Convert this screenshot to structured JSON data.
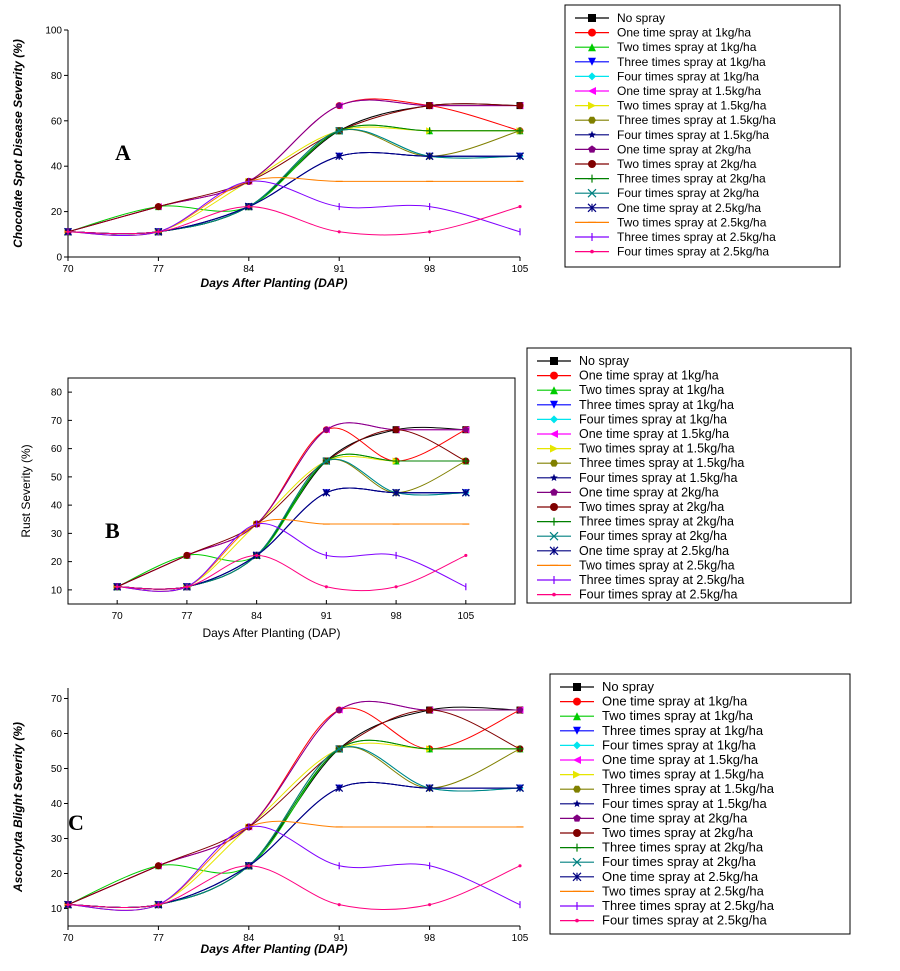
{
  "legend_series": [
    {
      "name": "No spray",
      "color": "#000000",
      "marker": "square"
    },
    {
      "name": "One time spray at 1kg/ha",
      "color": "#ff0000",
      "marker": "circle"
    },
    {
      "name": "Two times spray at 1kg/ha",
      "color": "#00cc00",
      "marker": "triangle-up"
    },
    {
      "name": "Three times spray at 1kg/ha",
      "color": "#0000ff",
      "marker": "triangle-down"
    },
    {
      "name": "Four times spray at 1kg/ha",
      "color": "#00e5ee",
      "marker": "diamond"
    },
    {
      "name": "One time spray at 1.5kg/ha",
      "color": "#ff00ff",
      "marker": "triangle-left"
    },
    {
      "name": "Two times spray at 1.5kg/ha",
      "color": "#e6e600",
      "marker": "triangle-right"
    },
    {
      "name": "Three times spray at 1.5kg/ha",
      "color": "#808000",
      "marker": "hexagon"
    },
    {
      "name": "Four times spray at 1.5kg/ha",
      "color": "#000080",
      "marker": "star"
    },
    {
      "name": "One time spray at 2kg/ha",
      "color": "#800080",
      "marker": "pentagon"
    },
    {
      "name": "Two times spray at 2kg/ha",
      "color": "#800000",
      "marker": "circle"
    },
    {
      "name": "Three times spray at 2kg/ha",
      "color": "#008000",
      "marker": "plus"
    },
    {
      "name": "Four times spray at 2kg/ha",
      "color": "#008080",
      "marker": "x"
    },
    {
      "name": "One time spray at 2.5kg/ha",
      "color": "#000080",
      "marker": "asterisk"
    },
    {
      "name": "Two times spray at 2.5kg/ha",
      "color": "#ff8000",
      "marker": "dash"
    },
    {
      "name": "Three times spray at 2.5kg/ha",
      "color": "#8000ff",
      "marker": "bar"
    },
    {
      "name": "Four times spray at 2.5kg/ha",
      "color": "#ff0080",
      "marker": "dot"
    }
  ],
  "chart_data": [
    {
      "type": "line",
      "panel_label": "A",
      "xlabel": "Days After Planting (DAP)",
      "ylabel": "Chocolate Spot Disease Severity (%)",
      "x": [
        70,
        77,
        84,
        91,
        98,
        105
      ],
      "x_ticks": [
        "70",
        "77",
        "84",
        "91",
        "98",
        "105"
      ],
      "y_ticks": [
        "0",
        "20",
        "40",
        "60",
        "80",
        "100"
      ],
      "ylim": [
        0,
        100
      ],
      "legend": "right",
      "grid": false,
      "series": [
        {
          "name": "No spray",
          "values": [
            11.1,
            11.1,
            22.2,
            55.6,
            66.7,
            66.7
          ]
        },
        {
          "name": "One time spray at 1kg/ha",
          "values": [
            11.1,
            22.2,
            33.3,
            66.7,
            66.7,
            55.6
          ]
        },
        {
          "name": "Two times spray at 1kg/ha",
          "values": [
            11.1,
            22.2,
            22.2,
            55.6,
            55.6,
            55.6
          ]
        },
        {
          "name": "Three times spray at 1kg/ha",
          "values": [
            11.1,
            11.1,
            22.2,
            44.4,
            44.4,
            44.4
          ]
        },
        {
          "name": "Four times spray at 1kg/ha",
          "values": [
            11.1,
            11.1,
            22.2,
            55.6,
            44.4,
            44.4
          ]
        },
        {
          "name": "One time spray at 1.5kg/ha",
          "values": [
            11.1,
            22.2,
            33.3,
            66.7,
            66.7,
            66.7
          ]
        },
        {
          "name": "Two times spray at 1.5kg/ha",
          "values": [
            11.1,
            11.1,
            33.3,
            55.6,
            55.6,
            55.6
          ]
        },
        {
          "name": "Three times spray at 1.5kg/ha",
          "values": [
            11.1,
            11.1,
            22.2,
            55.6,
            44.4,
            55.6
          ]
        },
        {
          "name": "Four times spray at 1.5kg/ha",
          "values": [
            11.1,
            11.1,
            22.2,
            44.4,
            44.4,
            44.4
          ]
        },
        {
          "name": "One time spray at 2kg/ha",
          "values": [
            11.1,
            22.2,
            33.3,
            66.7,
            66.7,
            66.7
          ]
        },
        {
          "name": "Two times spray at 2kg/ha",
          "values": [
            11.1,
            22.2,
            33.3,
            55.6,
            66.7,
            66.7
          ]
        },
        {
          "name": "Three times spray at 2kg/ha",
          "values": [
            11.1,
            11.1,
            22.2,
            55.6,
            55.6,
            55.6
          ]
        },
        {
          "name": "Four times spray at 2kg/ha",
          "values": [
            11.1,
            11.1,
            22.2,
            55.6,
            44.4,
            44.4
          ]
        },
        {
          "name": "One time spray at 2.5kg/ha",
          "values": [
            11.1,
            11.1,
            22.2,
            44.4,
            44.4,
            44.4
          ]
        },
        {
          "name": "Two times spray at 2.5kg/ha",
          "values": [
            11.1,
            11.1,
            33.3,
            33.3,
            33.3,
            33.3
          ]
        },
        {
          "name": "Three times spray at 2.5kg/ha",
          "values": [
            11.1,
            11.1,
            33.3,
            22.2,
            22.2,
            11.1
          ]
        },
        {
          "name": "Four times spray at 2.5kg/ha",
          "values": [
            11.1,
            11.1,
            22.2,
            11.1,
            11.1,
            22.2
          ]
        }
      ]
    },
    {
      "type": "line",
      "panel_label": "B",
      "xlabel": "Days After Planting (DAP)",
      "ylabel": "Rust Severity (%)",
      "x": [
        70,
        77,
        84,
        91,
        98,
        105
      ],
      "x_ticks": [
        "70",
        "77",
        "84",
        "91",
        "98",
        "105"
      ],
      "y_ticks": [
        "10",
        "20",
        "30",
        "40",
        "50",
        "60",
        "70",
        "80"
      ],
      "ylim": [
        5,
        85
      ],
      "legend": "right",
      "grid": false,
      "series": [
        {
          "name": "No spray",
          "values": [
            11.1,
            11.1,
            22.2,
            55.6,
            66.7,
            66.7
          ]
        },
        {
          "name": "One time spray at 1kg/ha",
          "values": [
            11.1,
            22.2,
            33.3,
            66.7,
            55.6,
            66.7
          ]
        },
        {
          "name": "Two times spray at 1kg/ha",
          "values": [
            11.1,
            22.2,
            22.2,
            55.6,
            55.6,
            55.6
          ]
        },
        {
          "name": "Three times spray at 1kg/ha",
          "values": [
            11.1,
            11.1,
            22.2,
            44.4,
            44.4,
            44.4
          ]
        },
        {
          "name": "Four times spray at 1kg/ha",
          "values": [
            11.1,
            11.1,
            22.2,
            55.6,
            44.4,
            44.4
          ]
        },
        {
          "name": "One time spray at 1.5kg/ha",
          "values": [
            11.1,
            22.2,
            33.3,
            66.7,
            66.7,
            66.7
          ]
        },
        {
          "name": "Two times spray at 1.5kg/ha",
          "values": [
            11.1,
            11.1,
            33.3,
            55.6,
            55.6,
            55.6
          ]
        },
        {
          "name": "Three times spray at 1.5kg/ha",
          "values": [
            11.1,
            11.1,
            22.2,
            55.6,
            44.4,
            55.6
          ]
        },
        {
          "name": "Four times spray at 1.5kg/ha",
          "values": [
            11.1,
            11.1,
            22.2,
            44.4,
            44.4,
            44.4
          ]
        },
        {
          "name": "One time spray at 2kg/ha",
          "values": [
            11.1,
            22.2,
            33.3,
            66.7,
            66.7,
            66.7
          ]
        },
        {
          "name": "Two times spray at 2kg/ha",
          "values": [
            11.1,
            22.2,
            33.3,
            55.6,
            66.7,
            55.6
          ]
        },
        {
          "name": "Three times spray at 2kg/ha",
          "values": [
            11.1,
            11.1,
            22.2,
            55.6,
            55.6,
            55.6
          ]
        },
        {
          "name": "Four times spray at 2kg/ha",
          "values": [
            11.1,
            11.1,
            22.2,
            55.6,
            44.4,
            44.4
          ]
        },
        {
          "name": "One time spray at 2.5kg/ha",
          "values": [
            11.1,
            11.1,
            22.2,
            44.4,
            44.4,
            44.4
          ]
        },
        {
          "name": "Two times spray at 2.5kg/ha",
          "values": [
            11.1,
            11.1,
            33.3,
            33.3,
            33.3,
            33.3
          ]
        },
        {
          "name": "Three times spray at 2.5kg/ha",
          "values": [
            11.1,
            11.1,
            33.3,
            22.2,
            22.2,
            11.1
          ]
        },
        {
          "name": "Four times spray at 2.5kg/ha",
          "values": [
            11.1,
            11.1,
            22.2,
            11.1,
            11.1,
            22.2
          ]
        }
      ]
    },
    {
      "type": "line",
      "panel_label": "C",
      "xlabel": "Days After Planting (DAP)",
      "ylabel": "Ascochyta Blight Severity (%)",
      "x": [
        70,
        77,
        84,
        91,
        98,
        105
      ],
      "x_ticks": [
        "70",
        "77",
        "84",
        "91",
        "98",
        "105"
      ],
      "y_ticks": [
        "10",
        "20",
        "30",
        "40",
        "50",
        "60",
        "70"
      ],
      "ylim": [
        5,
        73
      ],
      "legend": "right",
      "grid": false,
      "series": [
        {
          "name": "No spray",
          "values": [
            11.1,
            11.1,
            22.2,
            55.6,
            66.7,
            66.7
          ]
        },
        {
          "name": "One time spray at 1kg/ha",
          "values": [
            11.1,
            22.2,
            33.3,
            66.7,
            55.6,
            66.7
          ]
        },
        {
          "name": "Two times spray at 1kg/ha",
          "values": [
            11.1,
            22.2,
            22.2,
            55.6,
            55.6,
            55.6
          ]
        },
        {
          "name": "Three times spray at 1kg/ha",
          "values": [
            11.1,
            11.1,
            22.2,
            44.4,
            44.4,
            44.4
          ]
        },
        {
          "name": "Four times spray at 1kg/ha",
          "values": [
            11.1,
            11.1,
            22.2,
            55.6,
            44.4,
            44.4
          ]
        },
        {
          "name": "One time spray at 1.5kg/ha",
          "values": [
            11.1,
            22.2,
            33.3,
            66.7,
            66.7,
            66.7
          ]
        },
        {
          "name": "Two times spray at 1.5kg/ha",
          "values": [
            11.1,
            11.1,
            33.3,
            55.6,
            55.6,
            55.6
          ]
        },
        {
          "name": "Three times spray at 1.5kg/ha",
          "values": [
            11.1,
            11.1,
            22.2,
            55.6,
            44.4,
            55.6
          ]
        },
        {
          "name": "Four times spray at 1.5kg/ha",
          "values": [
            11.1,
            11.1,
            22.2,
            44.4,
            44.4,
            44.4
          ]
        },
        {
          "name": "One time spray at 2kg/ha",
          "values": [
            11.1,
            22.2,
            33.3,
            66.7,
            66.7,
            66.7
          ]
        },
        {
          "name": "Two times spray at 2kg/ha",
          "values": [
            11.1,
            22.2,
            33.3,
            55.6,
            66.7,
            55.6
          ]
        },
        {
          "name": "Three times spray at 2kg/ha",
          "values": [
            11.1,
            11.1,
            22.2,
            55.6,
            55.6,
            55.6
          ]
        },
        {
          "name": "Four times spray at 2kg/ha",
          "values": [
            11.1,
            11.1,
            22.2,
            55.6,
            44.4,
            44.4
          ]
        },
        {
          "name": "One time spray at 2.5kg/ha",
          "values": [
            11.1,
            11.1,
            22.2,
            44.4,
            44.4,
            44.4
          ]
        },
        {
          "name": "Two times spray at 2.5kg/ha",
          "values": [
            11.1,
            11.1,
            33.3,
            33.3,
            33.3,
            33.3
          ]
        },
        {
          "name": "Three times spray at 2.5kg/ha",
          "values": [
            11.1,
            11.1,
            33.3,
            22.2,
            22.2,
            11.1
          ]
        },
        {
          "name": "Four times spray at 2.5kg/ha",
          "values": [
            11.1,
            11.1,
            22.2,
            11.1,
            11.1,
            22.2
          ]
        }
      ]
    }
  ]
}
